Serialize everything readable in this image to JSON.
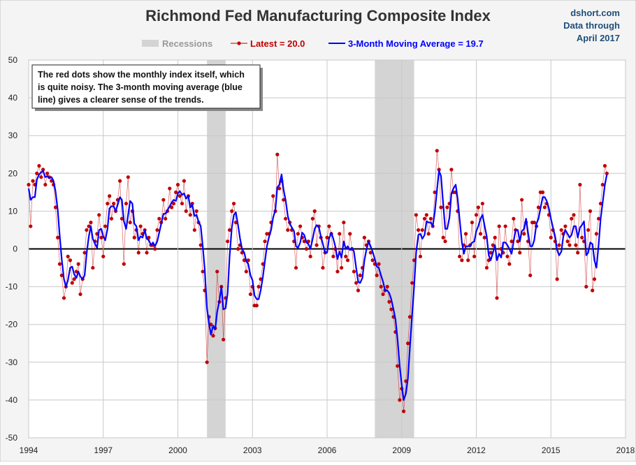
{
  "chart_data": {
    "type": "line",
    "title": "Richmond Fed Manufacturing Composite Index",
    "source_lines": [
      "dshort.com",
      "Data through",
      "April 2017"
    ],
    "annotation_lines": [
      "The red dots show the monthly  index itself, which",
      "is quite noisy. The 3-month moving average (blue",
      "line) gives a clearer sense of the trends."
    ],
    "recession_label": "Recessions",
    "recession_color": "#d4d4d4",
    "recessions": [
      {
        "start": 2001.17,
        "end": 2001.92
      },
      {
        "start": 2007.92,
        "end": 2009.5
      }
    ],
    "xlim": [
      1994,
      2018
    ],
    "xticks": [
      1994,
      1997,
      2000,
      2003,
      2006,
      2009,
      2012,
      2015,
      2018
    ],
    "ylim": [
      -50,
      50
    ],
    "yticks": [
      -50,
      -40,
      -30,
      -20,
      -10,
      0,
      10,
      20,
      30,
      40,
      50
    ],
    "grid": true,
    "x": [
      1994,
      1994.08,
      1994.17,
      1994.25,
      1994.33,
      1994.42,
      1994.5,
      1994.58,
      1994.67,
      1994.75,
      1994.83,
      1994.92,
      1995,
      1995.08,
      1995.17,
      1995.25,
      1995.33,
      1995.42,
      1995.5,
      1995.58,
      1995.67,
      1995.75,
      1995.83,
      1995.92,
      1996,
      1996.08,
      1996.17,
      1996.25,
      1996.33,
      1996.42,
      1996.5,
      1996.58,
      1996.67,
      1996.75,
      1996.83,
      1996.92,
      1997,
      1997.08,
      1997.17,
      1997.25,
      1997.33,
      1997.42,
      1997.5,
      1997.58,
      1997.67,
      1997.75,
      1997.83,
      1997.92,
      1998,
      1998.08,
      1998.17,
      1998.25,
      1998.33,
      1998.42,
      1998.5,
      1998.58,
      1998.67,
      1998.75,
      1998.83,
      1998.92,
      1999,
      1999.08,
      1999.17,
      1999.25,
      1999.33,
      1999.42,
      1999.5,
      1999.58,
      1999.67,
      1999.75,
      1999.83,
      1999.92,
      2000,
      2000.08,
      2000.17,
      2000.25,
      2000.33,
      2000.42,
      2000.5,
      2000.58,
      2000.67,
      2000.75,
      2000.83,
      2000.92,
      2001,
      2001.08,
      2001.17,
      2001.25,
      2001.33,
      2001.42,
      2001.5,
      2001.58,
      2001.67,
      2001.75,
      2001.83,
      2001.92,
      2002,
      2002.08,
      2002.17,
      2002.25,
      2002.33,
      2002.42,
      2002.5,
      2002.58,
      2002.67,
      2002.75,
      2002.83,
      2002.92,
      2003,
      2003.08,
      2003.17,
      2003.25,
      2003.33,
      2003.42,
      2003.5,
      2003.58,
      2003.67,
      2003.75,
      2003.83,
      2003.92,
      2004,
      2004.08,
      2004.17,
      2004.25,
      2004.33,
      2004.42,
      2004.5,
      2004.58,
      2004.67,
      2004.75,
      2004.83,
      2004.92,
      2005,
      2005.08,
      2005.17,
      2005.25,
      2005.33,
      2005.42,
      2005.5,
      2005.58,
      2005.67,
      2005.75,
      2005.83,
      2005.92,
      2006,
      2006.08,
      2006.17,
      2006.25,
      2006.33,
      2006.42,
      2006.5,
      2006.58,
      2006.67,
      2006.75,
      2006.83,
      2006.92,
      2007,
      2007.08,
      2007.17,
      2007.25,
      2007.33,
      2007.42,
      2007.5,
      2007.58,
      2007.67,
      2007.75,
      2007.83,
      2007.92,
      2008,
      2008.08,
      2008.17,
      2008.25,
      2008.33,
      2008.42,
      2008.5,
      2008.58,
      2008.67,
      2008.75,
      2008.83,
      2008.92,
      2009,
      2009.08,
      2009.17,
      2009.25,
      2009.33,
      2009.42,
      2009.5,
      2009.58,
      2009.67,
      2009.75,
      2009.83,
      2009.92,
      2010,
      2010.08,
      2010.17,
      2010.25,
      2010.33,
      2010.42,
      2010.5,
      2010.58,
      2010.67,
      2010.75,
      2010.83,
      2010.92,
      2011,
      2011.08,
      2011.17,
      2011.25,
      2011.33,
      2011.42,
      2011.5,
      2011.58,
      2011.67,
      2011.75,
      2011.83,
      2011.92,
      2012,
      2012.08,
      2012.17,
      2012.25,
      2012.33,
      2012.42,
      2012.5,
      2012.58,
      2012.67,
      2012.75,
      2012.83,
      2012.92,
      2013,
      2013.08,
      2013.17,
      2013.25,
      2013.33,
      2013.42,
      2013.5,
      2013.58,
      2013.67,
      2013.75,
      2013.83,
      2013.92,
      2014,
      2014.08,
      2014.17,
      2014.25,
      2014.33,
      2014.42,
      2014.5,
      2014.58,
      2014.67,
      2014.75,
      2014.83,
      2014.92,
      2015,
      2015.08,
      2015.17,
      2015.25,
      2015.33,
      2015.42,
      2015.5,
      2015.58,
      2015.67,
      2015.75,
      2015.83,
      2015.92,
      2016,
      2016.08,
      2016.17,
      2016.25,
      2016.33,
      2016.42,
      2016.5,
      2016.58,
      2016.67,
      2016.75,
      2016.83,
      2016.92,
      2017,
      2017.08,
      2017.17,
      2017.25
    ],
    "series": [
      {
        "name": "Latest = 20.0",
        "color": "#c00000",
        "values": [
          17,
          6,
          18,
          17,
          20,
          22,
          19,
          21,
          17,
          20,
          19,
          18,
          17,
          11,
          3,
          -4,
          -7,
          -13,
          -10,
          -2,
          -3,
          -9,
          -8,
          -6,
          -4,
          -12,
          -8,
          -1,
          5,
          6,
          7,
          -5,
          2,
          4,
          9,
          3,
          -2,
          6,
          12,
          14,
          8,
          12,
          10,
          13,
          18,
          8,
          -4,
          12,
          19,
          7,
          10,
          3,
          5,
          -1,
          6,
          4,
          5,
          -1,
          3,
          1,
          1,
          0,
          5,
          8,
          7,
          13,
          8,
          10,
          16,
          11,
          12,
          15,
          17,
          14,
          12,
          18,
          10,
          14,
          9,
          12,
          5,
          10,
          7,
          1,
          -6,
          -11,
          -30,
          -18,
          -20,
          -23,
          -21,
          -6,
          -14,
          -10,
          -24,
          -13,
          2,
          5,
          10,
          12,
          7,
          0,
          1,
          -1,
          -3,
          -6,
          -3,
          -12,
          -10,
          -15,
          -15,
          -10,
          -8,
          -4,
          2,
          4,
          4,
          7,
          14,
          10,
          25,
          16,
          18,
          13,
          8,
          5,
          7,
          5,
          2,
          -5,
          4,
          6,
          3,
          2,
          0,
          2,
          -2,
          8,
          10,
          1,
          6,
          3,
          -5,
          -1,
          3,
          6,
          4,
          -2,
          0,
          -6,
          4,
          -5,
          7,
          -2,
          -3,
          4,
          0,
          -6,
          -9,
          -11,
          -7,
          -5,
          3,
          1,
          2,
          -1,
          -3,
          -4,
          -7,
          -4,
          -10,
          -12,
          -11,
          -10,
          -14,
          -16,
          -18,
          -22,
          -31,
          -40,
          -37,
          -43,
          -35,
          -25,
          -18,
          -9,
          -3,
          9,
          5,
          -2,
          5,
          8,
          9,
          4,
          8,
          6,
          15,
          26,
          21,
          11,
          3,
          2,
          11,
          12,
          21,
          15,
          15,
          10,
          -2,
          -3,
          1,
          4,
          -3,
          1,
          7,
          -2,
          9,
          11,
          4,
          12,
          3,
          -5,
          -3,
          -1,
          1,
          3,
          -13,
          6,
          0,
          -1,
          6,
          -2,
          -4,
          2,
          8,
          5,
          2,
          -1,
          13,
          4,
          7,
          2,
          -7,
          7,
          7,
          6,
          11,
          15,
          15,
          11,
          12,
          9,
          3,
          5,
          2,
          -8,
          1,
          5,
          4,
          6,
          2,
          1,
          8,
          9,
          1,
          -1,
          17,
          3,
          2,
          -10,
          5,
          10,
          -11,
          -8,
          4,
          8,
          12,
          17,
          22,
          20
        ]
      },
      {
        "name": "3-Month Moving Average = 19.7",
        "color": "#0000ff",
        "values": [
          16,
          13,
          13.7,
          13.7,
          18.3,
          19.7,
          20.3,
          20.7,
          19.0,
          19.3,
          18.7,
          19.0,
          18.0,
          15.3,
          10.3,
          3.3,
          -2.7,
          -8.0,
          -10.0,
          -8.3,
          -5.0,
          -4.7,
          -6.7,
          -7.7,
          -6.0,
          -7.3,
          -8.0,
          -7.0,
          -1.3,
          3.3,
          6.0,
          2.7,
          1.3,
          0.3,
          5.0,
          5.3,
          3.3,
          2.3,
          5.3,
          10.7,
          11.3,
          11.3,
          10.0,
          11.7,
          13.7,
          13.0,
          7.3,
          5.3,
          9.0,
          12.7,
          12.0,
          6.7,
          6.0,
          2.3,
          3.3,
          3.0,
          5.0,
          2.7,
          2.3,
          1.0,
          1.7,
          0.7,
          2.0,
          4.3,
          6.7,
          9.3,
          9.3,
          10.3,
          11.3,
          12.3,
          13.0,
          12.7,
          14.7,
          15.3,
          14.3,
          14.7,
          13.3,
          14.0,
          11.0,
          11.7,
          8.7,
          9.0,
          7.3,
          6.0,
          0.7,
          -5.3,
          -15.7,
          -19.7,
          -22.7,
          -20.3,
          -21.3,
          -16.7,
          -13.7,
          -10.0,
          -16.0,
          -15.7,
          -11.7,
          -2.0,
          5.7,
          9.0,
          9.7,
          6.3,
          2.7,
          0.0,
          -1.0,
          -3.3,
          -4.0,
          -7.0,
          -8.3,
          -12.3,
          -13.3,
          -13.3,
          -11.0,
          -7.3,
          -3.3,
          0.7,
          3.3,
          5.0,
          8.3,
          10.3,
          16.3,
          17.0,
          19.7,
          15.7,
          13.0,
          8.7,
          6.7,
          5.7,
          4.7,
          0.7,
          0.3,
          1.7,
          4.3,
          3.7,
          1.7,
          1.3,
          0.0,
          2.7,
          5.3,
          6.3,
          5.7,
          3.3,
          1.3,
          -1.0,
          -1.0,
          2.7,
          4.3,
          2.7,
          0.7,
          -2.7,
          -0.7,
          -2.3,
          2.0,
          0.0,
          0.7,
          -0.3,
          0.3,
          -0.7,
          -5.0,
          -8.7,
          -9.0,
          -7.7,
          -3.0,
          -0.3,
          2.0,
          0.7,
          -0.7,
          -2.7,
          -4.7,
          -5.0,
          -7.0,
          -8.7,
          -11.0,
          -11.0,
          -11.7,
          -13.3,
          -16.0,
          -18.7,
          -23.7,
          -31.0,
          -36.0,
          -40.0,
          -38.3,
          -34.3,
          -26.0,
          -17.3,
          -10.0,
          -1.0,
          3.7,
          4.0,
          2.7,
          3.7,
          7.3,
          7.0,
          7.0,
          6.0,
          9.7,
          15.7,
          20.7,
          19.3,
          11.7,
          5.3,
          5.3,
          8.3,
          14.7,
          16.0,
          17.0,
          13.3,
          7.7,
          1.7,
          -1.3,
          0.7,
          0.7,
          0.7,
          1.7,
          2.0,
          4.7,
          6.0,
          8.0,
          9.0,
          6.3,
          3.3,
          -1.7,
          -3.0,
          -1.0,
          1.0,
          -3.0,
          -1.3,
          -2.3,
          1.7,
          1.7,
          1.0,
          0.0,
          -1.3,
          2.0,
          5.0,
          5.0,
          2.0,
          4.7,
          5.3,
          8.0,
          4.3,
          0.7,
          0.7,
          2.3,
          6.7,
          8.0,
          10.7,
          13.7,
          13.7,
          12.7,
          10.7,
          8.0,
          5.7,
          3.3,
          -0.3,
          -1.7,
          -0.7,
          3.3,
          5.0,
          4.0,
          3.0,
          3.7,
          6.0,
          6.0,
          3.0,
          5.7,
          6.3,
          7.3,
          -1.7,
          -1.0,
          1.7,
          1.3,
          -3.0,
          -5.0,
          1.3,
          8.0,
          12.3,
          17.0,
          19.7
        ]
      }
    ]
  }
}
